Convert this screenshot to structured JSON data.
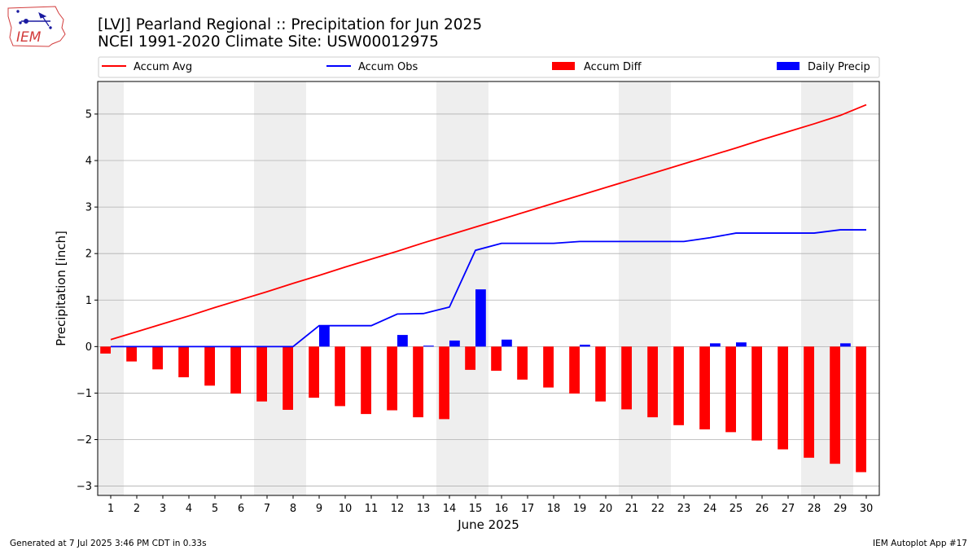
{
  "header": {
    "title_line1": "[LVJ] Pearland Regional :: Precipitation for Jun 2025",
    "title_line2": "NCEI 1991-2020 Climate Site: USW00012975",
    "logo_text": "IEM"
  },
  "footer": {
    "generated": "Generated at 7 Jul 2025 3:46 PM CDT in 0.33s",
    "app": "IEM Autoplot App #17"
  },
  "colors": {
    "accum_avg": "#ff0000",
    "accum_obs": "#0000ff",
    "accum_diff": "#ff0000",
    "daily_precip": "#0000ff",
    "weekend_shade": "#eeeeee",
    "grid": "#b0b0b0"
  },
  "chart_data": {
    "type": "bar",
    "xlabel": "June 2025",
    "ylabel": "Precipitation [inch]",
    "ylim": [
      -3.2,
      5.7
    ],
    "yticks": [
      -3,
      -2,
      -1,
      0,
      1,
      2,
      3,
      4,
      5
    ],
    "ytick_labels": [
      "−3",
      "−2",
      "−1",
      "0",
      "1",
      "2",
      "3",
      "4",
      "5"
    ],
    "grid": "horizontal",
    "legend_position": "top",
    "weekend_shading": [
      [
        1,
        1
      ],
      [
        7,
        8
      ],
      [
        14,
        15
      ],
      [
        21,
        22
      ],
      [
        28,
        29
      ]
    ],
    "x": [
      1,
      2,
      3,
      4,
      5,
      6,
      7,
      8,
      9,
      10,
      11,
      12,
      13,
      14,
      15,
      16,
      17,
      18,
      19,
      20,
      21,
      22,
      23,
      24,
      25,
      26,
      27,
      28,
      29,
      30
    ],
    "series": [
      {
        "name": "Accum Avg",
        "kind": "line",
        "values": [
          0.15,
          0.32,
          0.49,
          0.66,
          0.84,
          1.01,
          1.18,
          1.36,
          1.53,
          1.71,
          1.88,
          2.05,
          2.23,
          2.4,
          2.57,
          2.74,
          2.91,
          3.08,
          3.25,
          3.42,
          3.59,
          3.76,
          3.93,
          4.1,
          4.27,
          4.45,
          4.62,
          4.79,
          4.97,
          5.2
        ]
      },
      {
        "name": "Accum Obs",
        "kind": "line",
        "values": [
          0,
          0,
          0,
          0,
          0,
          0,
          0,
          0,
          0.45,
          0.45,
          0.45,
          0.7,
          0.71,
          0.85,
          2.07,
          2.22,
          2.22,
          2.22,
          2.26,
          2.26,
          2.26,
          2.26,
          2.26,
          2.34,
          2.44,
          2.44,
          2.44,
          2.44,
          2.51,
          2.51
        ]
      },
      {
        "name": "Accum Diff",
        "kind": "bar",
        "values": [
          -0.15,
          -0.32,
          -0.49,
          -0.66,
          -0.84,
          -1.01,
          -1.18,
          -1.36,
          -1.1,
          -1.28,
          -1.45,
          -1.37,
          -1.52,
          -1.56,
          -0.5,
          -0.52,
          -0.71,
          -0.88,
          -1.01,
          -1.18,
          -1.35,
          -1.52,
          -1.69,
          -1.78,
          -1.84,
          -2.02,
          -2.21,
          -2.39,
          -2.52,
          -2.7
        ]
      },
      {
        "name": "Daily Precip",
        "kind": "bar",
        "values": [
          0,
          0,
          0,
          0,
          0,
          0,
          0,
          0,
          0.45,
          0,
          0,
          0.25,
          0.02,
          0.13,
          1.23,
          0.15,
          0,
          0,
          0.04,
          0,
          0,
          0,
          0,
          0.07,
          0.09,
          0,
          0,
          0,
          0.07,
          0
        ]
      }
    ]
  }
}
